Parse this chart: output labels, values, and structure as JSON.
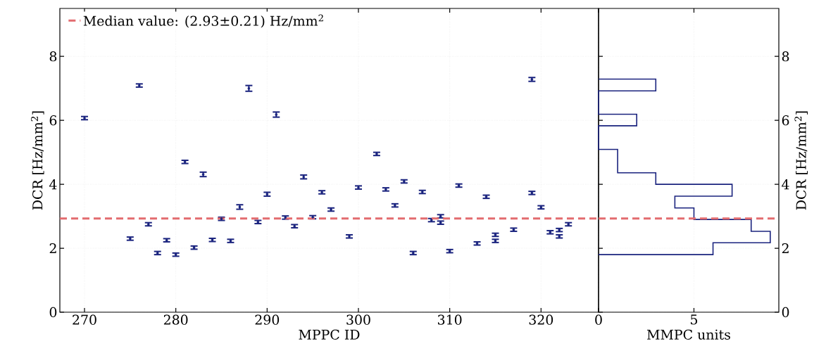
{
  "chart_data": [
    {
      "type": "scatter",
      "xlabel": "MPPC ID",
      "ylabel": "DCR [Hz/mm$^{2}$]",
      "x": [
        270,
        276,
        275,
        277,
        278,
        279,
        280,
        281,
        282,
        283,
        284,
        285,
        286,
        287,
        288,
        289,
        290,
        291,
        292,
        293,
        294,
        295,
        296,
        297,
        299,
        300,
        302,
        303,
        304,
        305,
        306,
        307,
        308,
        309,
        309,
        310,
        311,
        313,
        314,
        315,
        315,
        317,
        319,
        319,
        320,
        321,
        322,
        322,
        323
      ],
      "values": [
        6.07,
        7.09,
        2.3,
        2.75,
        1.85,
        2.25,
        1.8,
        4.7,
        2.02,
        4.31,
        2.26,
        2.92,
        2.23,
        3.29,
        7.0,
        2.82,
        3.69,
        6.18,
        2.96,
        2.69,
        4.23,
        2.97,
        3.75,
        3.21,
        2.37,
        3.9,
        4.95,
        3.84,
        3.34,
        4.09,
        1.85,
        3.76,
        2.88,
        3.0,
        2.8,
        1.91,
        3.96,
        2.15,
        3.61,
        2.42,
        2.23,
        2.58,
        7.28,
        3.73,
        3.28,
        2.5,
        2.57,
        2.37,
        2.75
      ],
      "errors": [
        0.05,
        0.05,
        0.05,
        0.05,
        0.05,
        0.05,
        0.05,
        0.05,
        0.05,
        0.07,
        0.05,
        0.05,
        0.05,
        0.07,
        0.09,
        0.05,
        0.06,
        0.08,
        0.05,
        0.05,
        0.06,
        0.05,
        0.05,
        0.05,
        0.05,
        0.05,
        0.05,
        0.05,
        0.05,
        0.05,
        0.05,
        0.05,
        0.05,
        0.05,
        0.05,
        0.05,
        0.05,
        0.05,
        0.05,
        0.05,
        0.05,
        0.05,
        0.06,
        0.05,
        0.05,
        0.05,
        0.05,
        0.05,
        0.05
      ],
      "color": "#1a237e",
      "xlim": [
        267.3,
        326.3
      ],
      "ylim": [
        0,
        9.5
      ],
      "xticks": [
        270,
        280,
        290,
        300,
        310,
        320
      ],
      "yticks": [
        0,
        2,
        4,
        6,
        8
      ],
      "ref_lines": [
        {
          "axis": "y",
          "value": 2.93,
          "label": "Median value: (2.93±0.21) Hz/mm$^{2}$",
          "color": "#e36c6f",
          "line_style": "dashed"
        }
      ],
      "grid": true,
      "legend": "top left"
    },
    {
      "type": "histogram",
      "orientation": "horizontal",
      "xlabel": "MMPC units",
      "ylabel": "DCR [Hz/mm$^{2}$]",
      "bins": [
        1.8,
        2.17,
        2.53,
        2.9,
        3.26,
        3.63,
        4.0,
        4.36,
        4.73,
        5.09,
        5.46,
        5.83,
        6.19,
        6.56,
        6.92,
        7.29
      ],
      "values": [
        6,
        9,
        8,
        5,
        4,
        7,
        3,
        1,
        1,
        0,
        0,
        2,
        0,
        0,
        3
      ],
      "color": "#1a237e",
      "xlim": [
        0,
        9.45
      ],
      "ylim": [
        0,
        9.5
      ],
      "xticks": [
        0,
        5
      ],
      "yticks": [
        0,
        2,
        4,
        6,
        8
      ],
      "ref_lines": [
        {
          "axis": "y",
          "value": 2.93,
          "color": "#e36c6f",
          "line_style": "dashed"
        }
      ],
      "grid": true
    }
  ]
}
